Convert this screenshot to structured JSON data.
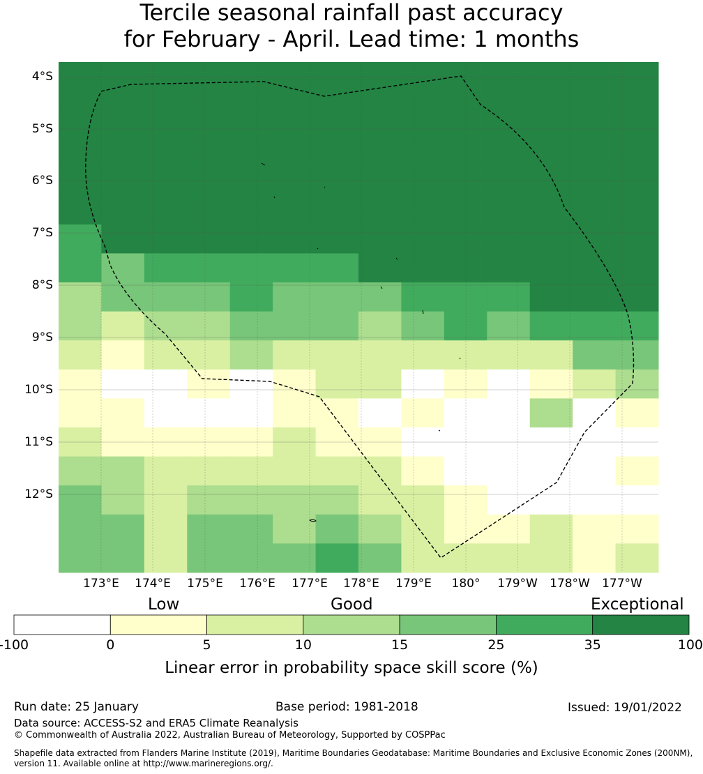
{
  "title": {
    "line1": "Tercile seasonal rainfall past accuracy",
    "line2": "for February - April. Lead time: 1 months"
  },
  "map": {
    "lat_labels": [
      "4°S",
      "5°S",
      "6°S",
      "7°S",
      "8°S",
      "9°S",
      "10°S",
      "11°S",
      "12°S"
    ],
    "lon_labels": [
      "173°E",
      "174°E",
      "175°E",
      "176°E",
      "177°E",
      "178°E",
      "179°E",
      "180°",
      "179°W",
      "178°W",
      "177°W"
    ],
    "grid_cell_categories": [
      [
        6,
        6,
        6,
        6,
        6,
        6,
        6,
        6,
        6,
        6,
        6,
        6,
        6,
        6
      ],
      [
        6,
        6,
        6,
        6,
        6,
        6,
        6,
        6,
        6,
        6,
        6,
        6,
        6,
        6
      ],
      [
        6,
        6,
        6,
        6,
        6,
        6,
        6,
        6,
        6,
        6,
        6,
        6,
        6,
        6
      ],
      [
        6,
        6,
        6,
        6,
        6,
        6,
        6,
        6,
        6,
        6,
        6,
        6,
        6,
        6
      ],
      [
        6,
        6,
        6,
        6,
        6,
        6,
        6,
        6,
        6,
        6,
        6,
        6,
        6,
        6
      ],
      [
        6,
        6,
        6,
        6,
        6,
        6,
        6,
        6,
        6,
        6,
        6,
        6,
        6,
        6
      ],
      [
        5,
        6,
        6,
        6,
        6,
        6,
        6,
        6,
        6,
        6,
        6,
        6,
        6,
        6
      ],
      [
        5,
        4,
        5,
        5,
        5,
        5,
        5,
        6,
        6,
        6,
        6,
        6,
        6,
        6
      ],
      [
        3,
        4,
        4,
        4,
        5,
        4,
        4,
        4,
        5,
        5,
        5,
        6,
        6,
        6
      ],
      [
        3,
        2,
        3,
        3,
        4,
        4,
        4,
        3,
        4,
        5,
        4,
        5,
        5,
        5
      ],
      [
        2,
        1,
        2,
        2,
        3,
        2,
        2,
        2,
        2,
        2,
        2,
        2,
        4,
        4
      ],
      [
        1,
        0,
        0,
        1,
        0,
        1,
        2,
        2,
        0,
        1,
        0,
        1,
        2,
        3
      ],
      [
        1,
        1,
        0,
        0,
        0,
        1,
        1,
        0,
        1,
        0,
        0,
        3,
        0,
        1
      ],
      [
        2,
        1,
        1,
        1,
        1,
        2,
        1,
        1,
        0,
        0,
        0,
        0,
        0,
        0
      ],
      [
        3,
        3,
        2,
        2,
        2,
        2,
        2,
        2,
        1,
        0,
        0,
        0,
        0,
        1
      ],
      [
        4,
        3,
        2,
        3,
        3,
        3,
        3,
        2,
        2,
        1,
        0,
        0,
        0,
        0
      ],
      [
        4,
        4,
        2,
        4,
        4,
        3,
        4,
        3,
        2,
        1,
        1,
        2,
        1,
        1
      ],
      [
        4,
        4,
        2,
        4,
        4,
        4,
        5,
        4,
        2,
        2,
        2,
        2,
        1,
        2
      ]
    ]
  },
  "legend": {
    "category_labels": [
      "Low",
      "Good",
      "Exceptional"
    ],
    "tick_labels": [
      "-100",
      "0",
      "5",
      "10",
      "15",
      "25",
      "35",
      "100"
    ],
    "colors": [
      "#ffffff",
      "#ffffcc",
      "#d9f0a3",
      "#addd8e",
      "#78c679",
      "#41ab5d",
      "#238443"
    ],
    "title": "Linear error in probability space skill score (%)"
  },
  "footer": {
    "run_date": "Run date: 25 January",
    "base_period": "Base period: 1981-2018",
    "issued": "Issued: 19/01/2022",
    "data_source": "Data source: ACCESS-S2 and ERA5 Climate Reanalysis",
    "copyright": "© Commonwealth of Australia 2022, Australian Bureau of Meteorology, Supported by COSPPac",
    "shapefile": "Shapefile data extracted from Flanders Marine Institute (2019), Maritime Boundaries Geodatabase: Maritime Boundaries and Exclusive Economic Zones (200NM), version 11. Available online at http://www.marineregions.org/."
  }
}
